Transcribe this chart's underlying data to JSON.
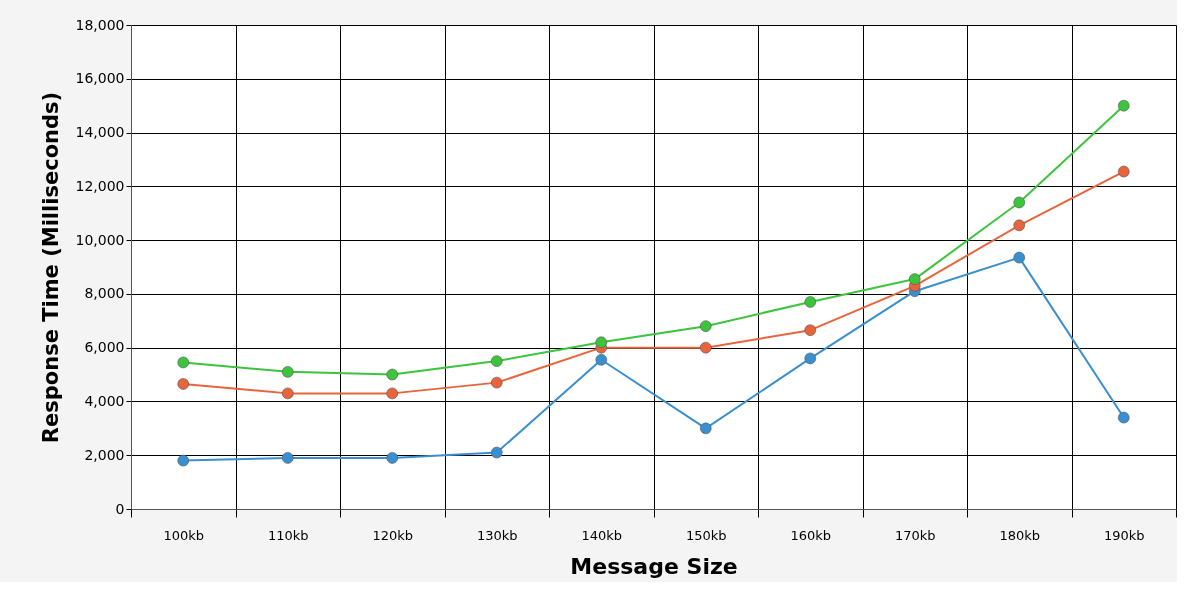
{
  "chart_data": {
    "type": "line",
    "xlabel": "Message Size",
    "ylabel": "Response Time (Milliseconds)",
    "categories": [
      "100kb",
      "110kb",
      "120kb",
      "130kb",
      "140kb",
      "150kb",
      "160kb",
      "170kb",
      "180kb",
      "190kb"
    ],
    "series": [
      {
        "color": "#3a8fd0",
        "values": [
          1800,
          1900,
          1900,
          2100,
          5550,
          3000,
          5600,
          8100,
          9350,
          3400
        ]
      },
      {
        "color": "#e8643c",
        "values": [
          4650,
          4300,
          4300,
          4700,
          6000,
          6000,
          6650,
          8300,
          10550,
          12550
        ]
      },
      {
        "color": "#3cc43c",
        "values": [
          5450,
          5100,
          5000,
          5500,
          6200,
          6800,
          7700,
          8550,
          11400,
          15000
        ]
      }
    ],
    "ylim": [
      0,
      18000
    ],
    "yticks": [
      0,
      {
        "value": 2000,
        "label": "2,000"
      },
      {
        "value": 4000,
        "label": "4,000"
      },
      {
        "value": 6000,
        "label": "6,000"
      },
      {
        "value": 8000,
        "label": "8,000"
      },
      {
        "value": 10000,
        "label": "10,000"
      },
      {
        "value": 12000,
        "label": "12,000"
      },
      {
        "value": 14000,
        "label": "14,000"
      },
      {
        "value": 16000,
        "label": "16,000"
      },
      {
        "value": 18000,
        "label": "18,000"
      }
    ],
    "grid": true,
    "marker": "circle",
    "line_style": "solid"
  }
}
